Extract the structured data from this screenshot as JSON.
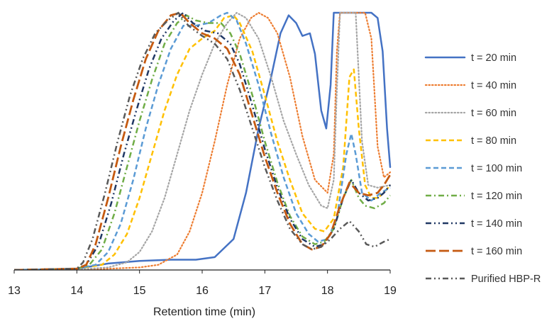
{
  "chart_data": {
    "type": "line",
    "title": "",
    "xlabel": "Retention time (min)",
    "ylabel": "",
    "xlim": [
      13,
      19
    ],
    "ylim": [
      0,
      1
    ],
    "x_ticks": [
      "13",
      "14",
      "15",
      "16",
      "17",
      "18",
      "19"
    ],
    "grid": false,
    "legend_position": "right",
    "series": [
      {
        "name": "t = 20 min",
        "color": "#4472C4",
        "style": "solid",
        "points": [
          [
            13,
            0
          ],
          [
            14,
            0.005
          ],
          [
            14.5,
            0.025
          ],
          [
            15,
            0.035
          ],
          [
            15.5,
            0.04
          ],
          [
            15.9,
            0.04
          ],
          [
            16.2,
            0.05
          ],
          [
            16.5,
            0.12
          ],
          [
            16.7,
            0.3
          ],
          [
            16.9,
            0.55
          ],
          [
            17.1,
            0.75
          ],
          [
            17.25,
            0.92
          ],
          [
            17.38,
            0.99
          ],
          [
            17.5,
            0.96
          ],
          [
            17.6,
            0.91
          ],
          [
            17.72,
            0.92
          ],
          [
            17.8,
            0.84
          ],
          [
            17.9,
            0.62
          ],
          [
            17.98,
            0.55
          ],
          [
            18.05,
            0.72
          ],
          [
            18.1,
            1.0
          ],
          [
            18.4,
            1.0
          ],
          [
            18.55,
            1.0
          ],
          [
            18.7,
            1.0
          ],
          [
            18.8,
            0.98
          ],
          [
            18.88,
            0.85
          ],
          [
            18.95,
            0.55
          ],
          [
            19,
            0.4
          ]
        ]
      },
      {
        "name": "t = 40 min",
        "color": "#ED7D31",
        "style": "dotted",
        "points": [
          [
            13,
            0
          ],
          [
            14,
            0
          ],
          [
            14.5,
            0.005
          ],
          [
            15,
            0.01
          ],
          [
            15.3,
            0.02
          ],
          [
            15.6,
            0.06
          ],
          [
            15.8,
            0.15
          ],
          [
            16,
            0.3
          ],
          [
            16.2,
            0.5
          ],
          [
            16.4,
            0.72
          ],
          [
            16.6,
            0.9
          ],
          [
            16.78,
            0.98
          ],
          [
            16.9,
            1.0
          ],
          [
            17.05,
            0.98
          ],
          [
            17.2,
            0.92
          ],
          [
            17.4,
            0.75
          ],
          [
            17.6,
            0.52
          ],
          [
            17.8,
            0.35
          ],
          [
            18.0,
            0.3
          ],
          [
            18.1,
            0.45
          ],
          [
            18.15,
            0.85
          ],
          [
            18.2,
            1.0
          ],
          [
            18.6,
            1.0
          ],
          [
            18.7,
            0.9
          ],
          [
            18.8,
            0.48
          ],
          [
            18.9,
            0.36
          ],
          [
            19,
            0.38
          ]
        ]
      },
      {
        "name": "t = 60 min",
        "color": "#A5A5A5",
        "style": "dotted",
        "points": [
          [
            13,
            0
          ],
          [
            14,
            0.002
          ],
          [
            14.5,
            0.01
          ],
          [
            14.8,
            0.03
          ],
          [
            15,
            0.07
          ],
          [
            15.2,
            0.15
          ],
          [
            15.4,
            0.28
          ],
          [
            15.6,
            0.45
          ],
          [
            15.8,
            0.62
          ],
          [
            16,
            0.76
          ],
          [
            16.2,
            0.88
          ],
          [
            16.4,
            0.96
          ],
          [
            16.55,
            1.0
          ],
          [
            16.7,
            0.98
          ],
          [
            16.9,
            0.9
          ],
          [
            17.1,
            0.75
          ],
          [
            17.3,
            0.58
          ],
          [
            17.5,
            0.45
          ],
          [
            17.7,
            0.33
          ],
          [
            17.9,
            0.25
          ],
          [
            18.0,
            0.24
          ],
          [
            18.1,
            0.35
          ],
          [
            18.15,
            0.7
          ],
          [
            18.2,
            1.0
          ],
          [
            18.45,
            1.0
          ],
          [
            18.55,
            0.5
          ],
          [
            18.65,
            0.33
          ],
          [
            18.8,
            0.32
          ],
          [
            19,
            0.33
          ]
        ]
      },
      {
        "name": "t = 80 min",
        "color": "#FFC000",
        "style": "dashed",
        "points": [
          [
            13,
            0
          ],
          [
            14,
            0.005
          ],
          [
            14.4,
            0.02
          ],
          [
            14.6,
            0.06
          ],
          [
            14.8,
            0.14
          ],
          [
            15,
            0.28
          ],
          [
            15.2,
            0.45
          ],
          [
            15.4,
            0.62
          ],
          [
            15.6,
            0.76
          ],
          [
            15.8,
            0.86
          ],
          [
            16,
            0.9
          ],
          [
            16.2,
            0.93
          ],
          [
            16.35,
            0.98
          ],
          [
            16.5,
            0.99
          ],
          [
            16.6,
            0.96
          ],
          [
            16.8,
            0.85
          ],
          [
            17,
            0.68
          ],
          [
            17.2,
            0.5
          ],
          [
            17.4,
            0.35
          ],
          [
            17.6,
            0.22
          ],
          [
            17.8,
            0.16
          ],
          [
            17.95,
            0.15
          ],
          [
            18.1,
            0.2
          ],
          [
            18.25,
            0.4
          ],
          [
            18.35,
            0.75
          ],
          [
            18.42,
            0.78
          ],
          [
            18.5,
            0.55
          ],
          [
            18.6,
            0.33
          ],
          [
            18.7,
            0.28
          ],
          [
            18.8,
            0.28
          ],
          [
            18.9,
            0.3
          ],
          [
            19,
            0.33
          ]
        ]
      },
      {
        "name": "t = 100 min",
        "color": "#5B9BD5",
        "style": "dashed",
        "points": [
          [
            13,
            0
          ],
          [
            14,
            0.005
          ],
          [
            14.3,
            0.02
          ],
          [
            14.5,
            0.07
          ],
          [
            14.7,
            0.18
          ],
          [
            14.9,
            0.35
          ],
          [
            15.1,
            0.55
          ],
          [
            15.3,
            0.72
          ],
          [
            15.5,
            0.86
          ],
          [
            15.7,
            0.95
          ],
          [
            15.9,
            0.95
          ],
          [
            16.1,
            0.96
          ],
          [
            16.3,
            0.99
          ],
          [
            16.4,
            1.0
          ],
          [
            16.55,
            0.97
          ],
          [
            16.7,
            0.88
          ],
          [
            16.9,
            0.72
          ],
          [
            17.1,
            0.53
          ],
          [
            17.3,
            0.36
          ],
          [
            17.5,
            0.22
          ],
          [
            17.7,
            0.14
          ],
          [
            17.85,
            0.11
          ],
          [
            18.0,
            0.12
          ],
          [
            18.15,
            0.2
          ],
          [
            18.3,
            0.45
          ],
          [
            18.38,
            0.53
          ],
          [
            18.45,
            0.45
          ],
          [
            18.55,
            0.3
          ],
          [
            18.7,
            0.27
          ],
          [
            18.85,
            0.3
          ],
          [
            19,
            0.32
          ]
        ]
      },
      {
        "name": "t = 120 min",
        "color": "#70AD47",
        "style": "dashdot",
        "points": [
          [
            13,
            0
          ],
          [
            14,
            0.005
          ],
          [
            14.2,
            0.02
          ],
          [
            14.4,
            0.08
          ],
          [
            14.6,
            0.22
          ],
          [
            14.8,
            0.4
          ],
          [
            15,
            0.58
          ],
          [
            15.2,
            0.74
          ],
          [
            15.4,
            0.88
          ],
          [
            15.6,
            0.96
          ],
          [
            15.75,
            0.99
          ],
          [
            15.9,
            0.97
          ],
          [
            16.1,
            0.96
          ],
          [
            16.3,
            0.96
          ],
          [
            16.45,
            0.92
          ],
          [
            16.6,
            0.84
          ],
          [
            16.8,
            0.68
          ],
          [
            17,
            0.5
          ],
          [
            17.2,
            0.34
          ],
          [
            17.4,
            0.21
          ],
          [
            17.6,
            0.13
          ],
          [
            17.8,
            0.1
          ],
          [
            17.95,
            0.11
          ],
          [
            18.1,
            0.16
          ],
          [
            18.25,
            0.28
          ],
          [
            18.38,
            0.35
          ],
          [
            18.5,
            0.28
          ],
          [
            18.6,
            0.25
          ],
          [
            18.75,
            0.24
          ],
          [
            18.9,
            0.26
          ],
          [
            19,
            0.29
          ]
        ]
      },
      {
        "name": "t = 140 min",
        "color": "#203864",
        "style": "dashdotdot",
        "points": [
          [
            13,
            0
          ],
          [
            14,
            0.005
          ],
          [
            14.15,
            0.02
          ],
          [
            14.35,
            0.1
          ],
          [
            14.55,
            0.26
          ],
          [
            14.75,
            0.45
          ],
          [
            14.95,
            0.62
          ],
          [
            15.15,
            0.78
          ],
          [
            15.35,
            0.9
          ],
          [
            15.55,
            0.97
          ],
          [
            15.7,
            1.0
          ],
          [
            15.85,
            0.96
          ],
          [
            16.05,
            0.93
          ],
          [
            16.25,
            0.92
          ],
          [
            16.45,
            0.88
          ],
          [
            16.6,
            0.8
          ],
          [
            16.8,
            0.64
          ],
          [
            17,
            0.47
          ],
          [
            17.2,
            0.32
          ],
          [
            17.4,
            0.2
          ],
          [
            17.6,
            0.12
          ],
          [
            17.8,
            0.09
          ],
          [
            17.95,
            0.1
          ],
          [
            18.1,
            0.16
          ],
          [
            18.25,
            0.28
          ],
          [
            18.38,
            0.35
          ],
          [
            18.5,
            0.3
          ],
          [
            18.65,
            0.27
          ],
          [
            18.8,
            0.28
          ],
          [
            18.9,
            0.3
          ],
          [
            19,
            0.33
          ]
        ]
      },
      {
        "name": "t = 160 min",
        "color": "#C55A11",
        "style": "longdash",
        "points": [
          [
            13,
            0
          ],
          [
            14,
            0.005
          ],
          [
            14.15,
            0.02
          ],
          [
            14.3,
            0.1
          ],
          [
            14.5,
            0.28
          ],
          [
            14.7,
            0.48
          ],
          [
            14.9,
            0.66
          ],
          [
            15.1,
            0.82
          ],
          [
            15.3,
            0.93
          ],
          [
            15.5,
            0.99
          ],
          [
            15.65,
            1.0
          ],
          [
            15.8,
            0.96
          ],
          [
            16.0,
            0.92
          ],
          [
            16.2,
            0.9
          ],
          [
            16.4,
            0.86
          ],
          [
            16.6,
            0.76
          ],
          [
            16.8,
            0.6
          ],
          [
            17,
            0.44
          ],
          [
            17.2,
            0.3
          ],
          [
            17.4,
            0.18
          ],
          [
            17.6,
            0.1
          ],
          [
            17.75,
            0.08
          ],
          [
            17.9,
            0.09
          ],
          [
            18.05,
            0.14
          ],
          [
            18.2,
            0.25
          ],
          [
            18.35,
            0.34
          ],
          [
            18.5,
            0.3
          ],
          [
            18.65,
            0.29
          ],
          [
            18.8,
            0.3
          ],
          [
            18.9,
            0.33
          ],
          [
            19,
            0.37
          ]
        ]
      },
      {
        "name": "Purified HBP-R",
        "color": "#595959",
        "style": "dashdotdot",
        "points": [
          [
            13,
            0
          ],
          [
            14,
            0.005
          ],
          [
            14.1,
            0.03
          ],
          [
            14.25,
            0.12
          ],
          [
            14.45,
            0.3
          ],
          [
            14.65,
            0.5
          ],
          [
            14.85,
            0.68
          ],
          [
            15.05,
            0.82
          ],
          [
            15.25,
            0.92
          ],
          [
            15.45,
            0.97
          ],
          [
            15.62,
            1.0
          ],
          [
            15.78,
            0.95
          ],
          [
            16.0,
            0.91
          ],
          [
            16.2,
            0.88
          ],
          [
            16.4,
            0.82
          ],
          [
            16.6,
            0.7
          ],
          [
            16.8,
            0.55
          ],
          [
            17,
            0.4
          ],
          [
            17.2,
            0.27
          ],
          [
            17.4,
            0.16
          ],
          [
            17.6,
            0.1
          ],
          [
            17.75,
            0.08
          ],
          [
            17.9,
            0.09
          ],
          [
            18.05,
            0.12
          ],
          [
            18.2,
            0.16
          ],
          [
            18.35,
            0.19
          ],
          [
            18.5,
            0.15
          ],
          [
            18.62,
            0.1
          ],
          [
            18.75,
            0.09
          ],
          [
            18.9,
            0.11
          ],
          [
            19,
            0.12
          ]
        ]
      }
    ]
  }
}
